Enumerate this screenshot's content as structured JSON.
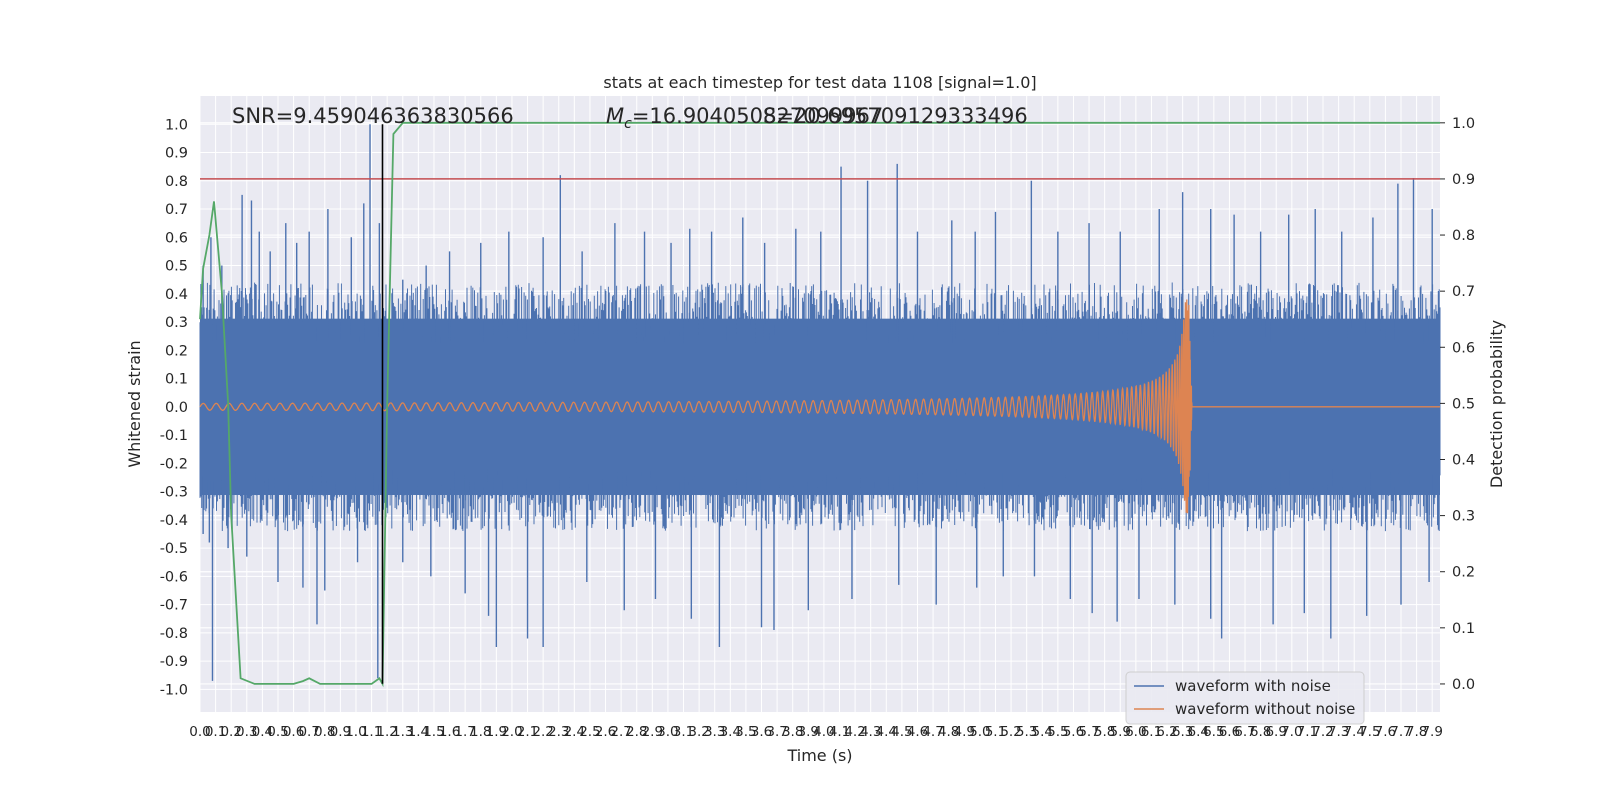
{
  "chart_data": {
    "type": "line",
    "title": "stats at each timestep for test data 1108 [signal=1.0]",
    "xlabel": "Time (s)",
    "ylabel": "Whitened strain",
    "y2label": "Detection probability",
    "xlim": [
      0.0,
      7.95
    ],
    "ylim": [
      -1.08,
      1.1
    ],
    "y2lim": [
      -0.05,
      1.0478
    ],
    "xticks": [
      "0.0",
      "0.1",
      "0.2",
      "0.3",
      "0.4",
      "0.5",
      "0.6",
      "0.7",
      "0.8",
      "0.9",
      "1.0",
      "1.1",
      "1.2",
      "1.3",
      "1.4",
      "1.5",
      "1.6",
      "1.7",
      "1.8",
      "1.9",
      "2.0",
      "2.1",
      "2.2",
      "2.3",
      "2.4",
      "2.5",
      "2.6",
      "2.7",
      "2.8",
      "2.9",
      "3.0",
      "3.1",
      "3.2",
      "3.3",
      "3.4",
      "3.5",
      "3.6",
      "3.7",
      "3.8",
      "3.9",
      "4.0",
      "4.1",
      "4.2",
      "4.3",
      "4.4",
      "4.5",
      "4.6",
      "4.7",
      "4.8",
      "4.9",
      "5.0",
      "5.1",
      "5.2",
      "5.3",
      "5.4",
      "5.5",
      "5.6",
      "5.7",
      "5.8",
      "5.9",
      "6.0",
      "6.1",
      "6.2",
      "6.3",
      "6.4",
      "6.5",
      "6.6",
      "6.7",
      "6.8",
      "6.9",
      "7.0",
      "7.1",
      "7.2",
      "7.3",
      "7.4",
      "7.5",
      "7.6",
      "7.7",
      "7.8",
      "7.9"
    ],
    "yticks": [
      "1.0",
      "0.9",
      "0.8",
      "0.7",
      "0.6",
      "0.5",
      "0.4",
      "0.3",
      "0.2",
      "0.1",
      "0.0",
      "-0.1",
      "-0.2",
      "-0.3",
      "-0.4",
      "-0.5",
      "-0.6",
      "-0.7",
      "-0.8",
      "-0.9",
      "-1.0"
    ],
    "y2ticks": [
      "1.0",
      "0.9",
      "0.8",
      "0.7",
      "0.6",
      "0.5",
      "0.4",
      "0.3",
      "0.2",
      "0.1",
      "0.0"
    ],
    "annotations": {
      "snr": "SNR=9.459046363830566",
      "mc": "=16.904050827099967",
      "mc_symbol": "M",
      "mc_sub": "c",
      "overlap": "=20.695709129333496",
      "overlap_prefix": "S"
    },
    "threshold": {
      "value": 0.9,
      "axis": "y2",
      "color": "#c44e52"
    },
    "event_marker": {
      "x": 1.17,
      "color": "#000000"
    },
    "series": [
      {
        "name": "waveform with noise",
        "color": "#4c72b0",
        "axis": "y",
        "band": [
          -0.4,
          0.4
        ],
        "spikes": [
          [
            0.02,
            0.5
          ],
          [
            0.07,
            0.6
          ],
          [
            0.14,
            0.5
          ],
          [
            0.19,
            0.2
          ],
          [
            0.27,
            0.75
          ],
          [
            0.33,
            0.73
          ],
          [
            0.38,
            0.62
          ],
          [
            0.45,
            0.55
          ],
          [
            0.55,
            0.65
          ],
          [
            0.62,
            0.58
          ],
          [
            0.7,
            0.62
          ],
          [
            0.82,
            0.7
          ],
          [
            0.97,
            0.6
          ],
          [
            1.05,
            0.72
          ],
          [
            1.09,
            1.0
          ],
          [
            1.15,
            0.65
          ],
          [
            1.3,
            0.45
          ],
          [
            1.45,
            0.5
          ],
          [
            1.6,
            0.55
          ],
          [
            1.8,
            0.58
          ],
          [
            1.98,
            0.62
          ],
          [
            2.2,
            0.6
          ],
          [
            2.31,
            0.82
          ],
          [
            2.45,
            0.55
          ],
          [
            2.66,
            0.65
          ],
          [
            2.85,
            0.62
          ],
          [
            3.02,
            0.58
          ],
          [
            3.14,
            0.63
          ],
          [
            3.28,
            0.62
          ],
          [
            3.48,
            0.67
          ],
          [
            3.62,
            0.58
          ],
          [
            3.82,
            0.63
          ],
          [
            3.98,
            0.62
          ],
          [
            4.11,
            0.85
          ],
          [
            4.28,
            0.8
          ],
          [
            4.47,
            0.86
          ],
          [
            4.6,
            0.62
          ],
          [
            4.82,
            0.66
          ],
          [
            4.97,
            0.62
          ],
          [
            5.1,
            0.69
          ],
          [
            5.33,
            0.8
          ],
          [
            5.5,
            0.62
          ],
          [
            5.7,
            0.65
          ],
          [
            5.9,
            0.62
          ],
          [
            6.15,
            0.7
          ],
          [
            6.3,
            0.76
          ],
          [
            6.48,
            0.7
          ],
          [
            6.63,
            0.68
          ],
          [
            6.8,
            0.62
          ],
          [
            6.98,
            0.68
          ],
          [
            7.15,
            0.7
          ],
          [
            7.32,
            0.62
          ],
          [
            7.52,
            0.67
          ],
          [
            7.68,
            0.79
          ],
          [
            7.78,
            0.81
          ],
          [
            7.9,
            0.7
          ]
        ],
        "dips": [
          [
            0.02,
            -0.45
          ],
          [
            0.06,
            -0.48
          ],
          [
            0.08,
            -0.97
          ],
          [
            0.18,
            -0.5
          ],
          [
            0.3,
            -0.53
          ],
          [
            0.5,
            -0.62
          ],
          [
            0.66,
            -0.64
          ],
          [
            0.75,
            -0.77
          ],
          [
            0.8,
            -0.65
          ],
          [
            1.01,
            -0.55
          ],
          [
            1.14,
            -0.96
          ],
          [
            1.3,
            -0.55
          ],
          [
            1.48,
            -0.6
          ],
          [
            1.7,
            -0.66
          ],
          [
            1.85,
            -0.74
          ],
          [
            1.9,
            -0.85
          ],
          [
            2.1,
            -0.82
          ],
          [
            2.2,
            -0.85
          ],
          [
            2.48,
            -0.62
          ],
          [
            2.72,
            -0.72
          ],
          [
            2.92,
            -0.68
          ],
          [
            3.15,
            -0.75
          ],
          [
            3.33,
            -0.85
          ],
          [
            3.6,
            -0.78
          ],
          [
            3.68,
            -0.79
          ],
          [
            3.9,
            -0.72
          ],
          [
            4.18,
            -0.68
          ],
          [
            4.48,
            -0.63
          ],
          [
            4.72,
            -0.7
          ],
          [
            4.98,
            -0.64
          ],
          [
            5.15,
            -0.6
          ],
          [
            5.35,
            -0.6
          ],
          [
            5.58,
            -0.68
          ],
          [
            5.72,
            -0.73
          ],
          [
            5.88,
            -0.76
          ],
          [
            6.02,
            -0.68
          ],
          [
            6.25,
            -0.7
          ],
          [
            6.48,
            -0.75
          ],
          [
            6.55,
            -0.82
          ],
          [
            6.88,
            -0.77
          ],
          [
            7.08,
            -0.73
          ],
          [
            7.25,
            -0.82
          ],
          [
            7.48,
            -0.74
          ],
          [
            7.7,
            -0.7
          ],
          [
            7.88,
            -0.62
          ]
        ]
      },
      {
        "name": "waveform without noise",
        "color": "#dd8452",
        "axis": "y",
        "chirp": {
          "start": 0.0,
          "merger": 6.34,
          "peak": 0.38,
          "min": -0.38,
          "base_amplitude": 0.012,
          "start_freq_cycles_per_s": 12
        }
      },
      {
        "name": "detection probability",
        "color": "#55a868",
        "axis": "y2",
        "x": [
          0.0,
          0.02,
          0.06,
          0.09,
          0.14,
          0.18,
          0.2,
          0.26,
          0.35,
          0.5,
          0.6,
          0.66,
          0.7,
          0.77,
          0.85,
          1.0,
          1.1,
          1.15,
          1.17,
          1.2,
          1.24,
          1.3,
          1.4,
          2.0,
          3.0,
          4.0,
          5.0,
          6.0,
          7.0,
          7.95
        ],
        "y": [
          0.65,
          0.74,
          0.8,
          0.86,
          0.7,
          0.5,
          0.3,
          0.01,
          0.0,
          0.0,
          0.0,
          0.005,
          0.01,
          0.0,
          0.0,
          0.0,
          0.0,
          0.01,
          0.0,
          0.5,
          0.98,
          1.0,
          1.0,
          1.0,
          1.0,
          1.0,
          1.0,
          1.0,
          1.0,
          1.0
        ]
      }
    ],
    "legend": {
      "placement": "lower-right",
      "entries": [
        "waveform with noise",
        "waveform without noise"
      ]
    },
    "grid": true
  }
}
